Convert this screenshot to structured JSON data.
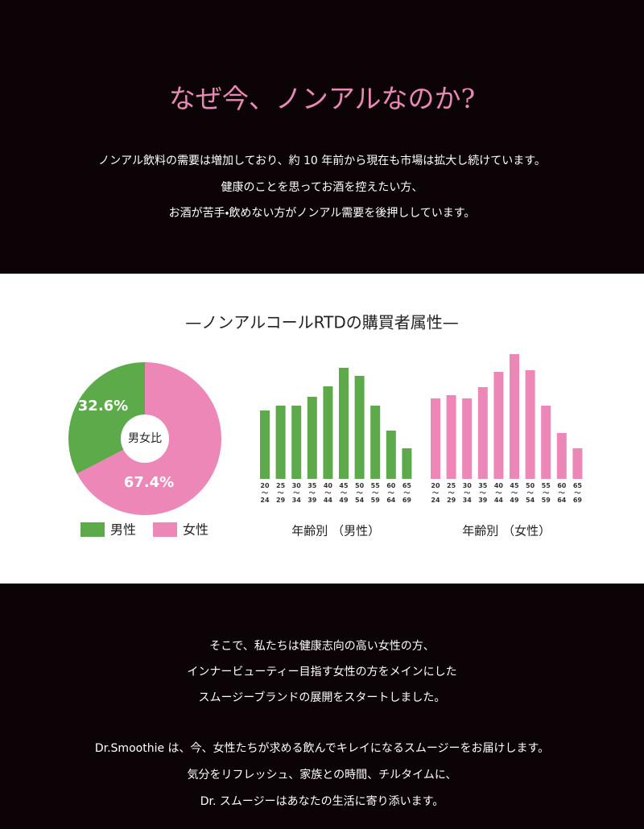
{
  "header": {
    "title": "なぜ今、ノンアルなのか?",
    "paragraphs": [
      "ノンアル飲料の需要は増加しており、約 10 年前から現在も市場は拡大し続けています。",
      "健康のことを思ってお酒を控えたい方、",
      "お酒が苦手・飲めない方がノンアル需要を後押ししています。"
    ]
  },
  "section_title": "—ノンアルコールRTDの購買者属性—",
  "chart_data": [
    {
      "type": "pie",
      "title": "男女比",
      "categories": [
        "男性",
        "女性"
      ],
      "values": [
        32.6,
        67.4
      ],
      "value_labels": [
        "32.6%",
        "67.4%"
      ],
      "colors": [
        "#5daa4a",
        "#ec87b7"
      ],
      "legend": "bottom"
    },
    {
      "type": "bar",
      "xlabel": "年齢別 （男性）",
      "categories": [
        "20〜24",
        "25〜29",
        "30〜34",
        "35〜39",
        "40〜44",
        "45〜49",
        "50〜54",
        "55〜59",
        "60〜64",
        "65〜69"
      ],
      "values": [
        85,
        91,
        91,
        102,
        115,
        138,
        128,
        91,
        60,
        38
      ],
      "color": "#5daa4a"
    },
    {
      "type": "bar",
      "xlabel": "年齢別 （女性）",
      "categories": [
        "20〜24",
        "25〜29",
        "30〜34",
        "35〜39",
        "40〜44",
        "45〜49",
        "50〜54",
        "55〜59",
        "60〜64",
        "65〜69"
      ],
      "values": [
        100,
        104,
        100,
        114,
        133,
        155,
        135,
        91,
        57,
        38
      ],
      "color": "#ec87b7"
    }
  ],
  "footer": {
    "paragraphs": [
      "そこで、私たちは健康志向の高い女性の方、",
      "インナービューティー目指す女性の方をメインにした",
      "スムージーブランドの展開をスタートしました。",
      "Dr.Smoothie は、今、女性たちが求める飲んでキレイになるスムージーをお届けします。",
      "気分をリフレッシュ、家族との時間、チルタイムに、",
      "Dr. スムージーはあなたの生活に寄り添います。"
    ]
  }
}
